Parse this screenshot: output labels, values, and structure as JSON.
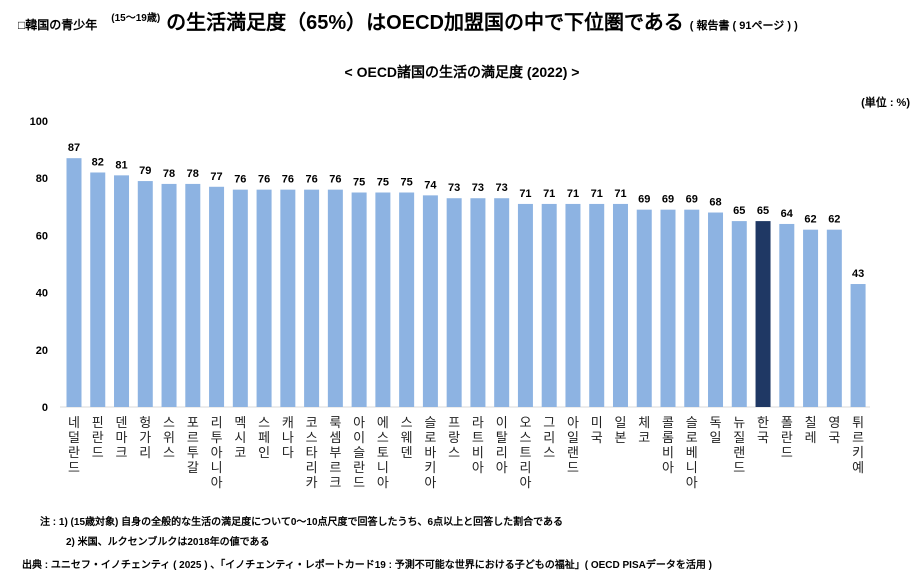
{
  "header": {
    "prefix": "□韓国の青少年",
    "age": "(15〜19歳)",
    "main": "の生活満足度（65%）はOECD加盟国の中で下位圏である",
    "ref": "( 報告書 ( 91ページ ) )"
  },
  "chart_data": {
    "type": "bar",
    "title": "< OECD諸国の生活の満足度 (2022) >",
    "unit_label": "(単位 : %)",
    "ylim": [
      0,
      100
    ],
    "yticks": [
      0,
      20,
      40,
      60,
      80,
      100
    ],
    "grid": false,
    "categories": [
      "네덜란드",
      "핀란드",
      "덴마크",
      "헝가리",
      "스위스",
      "포르투갈",
      "리투아니아",
      "멕시코",
      "스페인",
      "캐나다",
      "코스타리카",
      "룩셈부르크",
      "아이슬란드",
      "에스토니아",
      "스웨덴",
      "슬로바키아",
      "프랑스",
      "라트비아",
      "이탈리아",
      "오스트리아",
      "그리스",
      "아일랜드",
      "미국",
      "일본",
      "체코",
      "콜롬비아",
      "슬로베니아",
      "독일",
      "뉴질랜드",
      "한국",
      "폴란드",
      "칠레",
      "영국",
      "튀르키예"
    ],
    "values": [
      87,
      82,
      81,
      79,
      78,
      78,
      77,
      76,
      76,
      76,
      76,
      76,
      75,
      75,
      75,
      74,
      73,
      73,
      73,
      71,
      71,
      71,
      71,
      71,
      69,
      69,
      69,
      68,
      65,
      65,
      64,
      62,
      62,
      43
    ],
    "highlight": "한국",
    "colors": {
      "bar": "#8db3e2",
      "highlight": "#1f3864"
    }
  },
  "notes": {
    "note1": "注 : 1) (15歳対象) 自身の全般的な生活の満足度について0〜10点尺度で回答したうち、6点以上と回答した割合である",
    "note2": "2) 米国、ルクセンブルクは2018年の値である",
    "source": "出典 : ユニセフ・イノチェンティ ( 2025 ) 、「イノチェンティ・レポートカード19 : 予測不可能な世界における子どもの福祉」( OECD PISAデータを活用 )"
  }
}
